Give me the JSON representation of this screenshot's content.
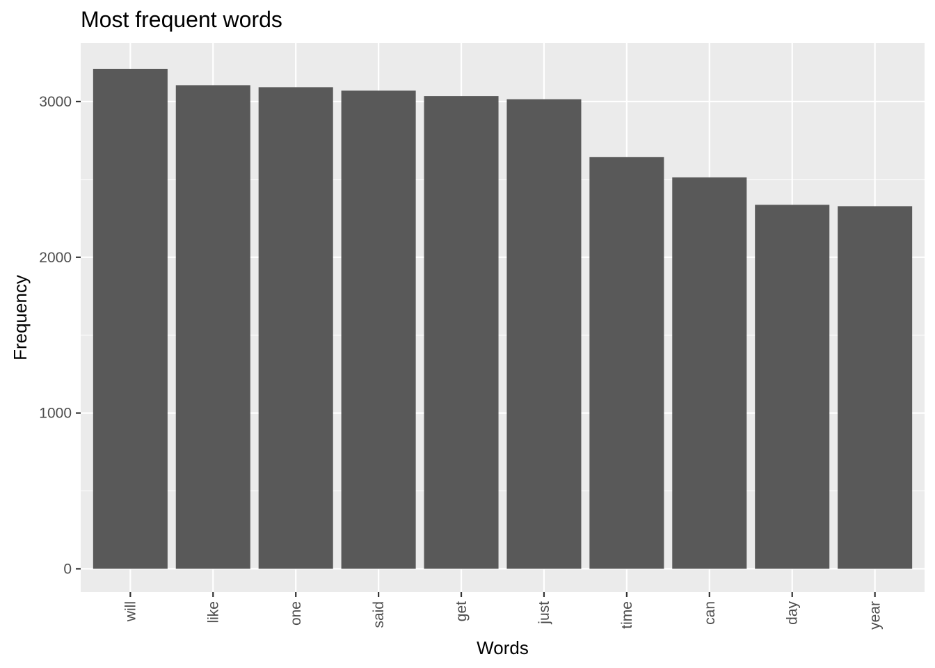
{
  "chart_data": {
    "type": "bar",
    "title": "Most frequent words",
    "xlabel": "Words",
    "ylabel": "Frequency",
    "categories": [
      "will",
      "like",
      "one",
      "said",
      "get",
      "just",
      "time",
      "can",
      "day",
      "year"
    ],
    "values": [
      3210,
      3105,
      3092,
      3070,
      3035,
      3015,
      2643,
      2513,
      2337,
      2328
    ],
    "ylim": [
      -150,
      3375
    ],
    "yticks": [
      0,
      1000,
      2000,
      3000
    ],
    "grid": true,
    "legend": "none",
    "colors": {
      "bar": "#595959",
      "panel": "#ebebeb",
      "grid": "#ffffff"
    }
  }
}
